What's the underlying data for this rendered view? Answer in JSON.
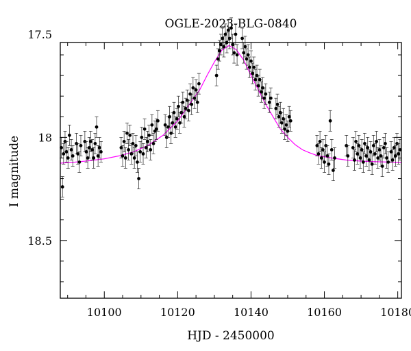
{
  "chart_data": {
    "type": "scatter",
    "title": "OGLE-2023-BLG-0840",
    "xlabel": "HJD - 2450000",
    "ylabel": "I magnitude",
    "xlim": [
      10088,
      10181
    ],
    "ylim": [
      18.78,
      17.54
    ],
    "y_inverted": true,
    "x_ticks": [
      10100,
      10120,
      10140,
      10160,
      10180
    ],
    "y_ticks": [
      17.5,
      18,
      18.5
    ],
    "x_tick_labels": [
      "10100",
      "10120",
      "10140",
      "10160",
      "10180"
    ],
    "y_tick_labels": [
      "17.5",
      "18",
      "18.5"
    ],
    "grid": false,
    "series": [
      {
        "kind": "points-with-errorbars",
        "color": "#000000",
        "error": 0.05,
        "points": [
          [
            10088.3,
            18.05
          ],
          [
            10088.6,
            18.24
          ],
          [
            10088.9,
            18.08
          ],
          [
            10089.3,
            18.02
          ],
          [
            10089.7,
            18.07
          ],
          [
            10090.1,
            18.1
          ],
          [
            10090.5,
            17.99
          ],
          [
            10091.0,
            18.06
          ],
          [
            10091.4,
            18.09
          ],
          [
            10092.4,
            18.03
          ],
          [
            10092.8,
            18.08
          ],
          [
            10093.2,
            18.12
          ],
          [
            10093.6,
            18.04
          ],
          [
            10094.7,
            18.02
          ],
          [
            10095.1,
            18.07
          ],
          [
            10095.5,
            18.1
          ],
          [
            10095.9,
            18.05
          ],
          [
            10096.3,
            18.02
          ],
          [
            10096.7,
            18.06
          ],
          [
            10097.1,
            18.1
          ],
          [
            10097.5,
            18.03
          ],
          [
            10097.9,
            17.95
          ],
          [
            10098.3,
            18.09
          ],
          [
            10098.7,
            18.05
          ],
          [
            10099.1,
            18.07
          ],
          [
            10104.6,
            18.05
          ],
          [
            10105.0,
            18.09
          ],
          [
            10105.4,
            18.02
          ],
          [
            10105.8,
            18.1
          ],
          [
            10106.2,
            17.98
          ],
          [
            10106.6,
            18.06
          ],
          [
            10107.0,
            17.99
          ],
          [
            10107.4,
            18.08
          ],
          [
            10107.8,
            18.03
          ],
          [
            10108.2,
            18.1
          ],
          [
            10108.6,
            18.04
          ],
          [
            10109.0,
            18.12
          ],
          [
            10109.4,
            18.2
          ],
          [
            10109.8,
            18.07
          ],
          [
            10110.2,
            18.0
          ],
          [
            10110.6,
            18.08
          ],
          [
            10111.0,
            17.96
          ],
          [
            10111.4,
            18.05
          ],
          [
            10111.8,
            18.02
          ],
          [
            10112.2,
            17.99
          ],
          [
            10112.6,
            18.06
          ],
          [
            10113.0,
            17.94
          ],
          [
            10113.4,
            18.03
          ],
          [
            10113.8,
            17.97
          ],
          [
            10114.2,
            17.96
          ],
          [
            10114.6,
            17.92
          ],
          [
            10116.6,
            17.94
          ],
          [
            10117.0,
            18.0
          ],
          [
            10117.4,
            17.95
          ],
          [
            10117.8,
            17.9
          ],
          [
            10118.2,
            17.98
          ],
          [
            10118.6,
            17.93
          ],
          [
            10119.0,
            17.88
          ],
          [
            10119.4,
            17.95
          ],
          [
            10119.8,
            17.91
          ],
          [
            10120.2,
            17.85
          ],
          [
            10120.6,
            17.93
          ],
          [
            10121.0,
            17.88
          ],
          [
            10121.4,
            17.83
          ],
          [
            10121.8,
            17.9
          ],
          [
            10122.2,
            17.86
          ],
          [
            10122.6,
            17.82
          ],
          [
            10123.0,
            17.87
          ],
          [
            10123.4,
            17.79
          ],
          [
            10123.8,
            17.84
          ],
          [
            10124.2,
            17.76
          ],
          [
            10124.6,
            17.81
          ],
          [
            10125.0,
            17.77
          ],
          [
            10125.4,
            17.83
          ],
          [
            10125.8,
            17.74
          ],
          [
            10130.6,
            17.7
          ],
          [
            10131.0,
            17.62
          ],
          [
            10131.4,
            17.58
          ],
          [
            10131.8,
            17.55
          ],
          [
            10132.2,
            17.52
          ],
          [
            10132.6,
            17.56
          ],
          [
            10133.0,
            17.5
          ],
          [
            10133.4,
            17.54
          ],
          [
            10133.8,
            17.48
          ],
          [
            10134.2,
            17.52
          ],
          [
            10134.6,
            17.47
          ],
          [
            10135.0,
            17.55
          ],
          [
            10135.4,
            17.59
          ],
          [
            10135.8,
            17.5
          ],
          [
            10136.2,
            17.6
          ],
          [
            10137.6,
            17.52
          ],
          [
            10138.0,
            17.59
          ],
          [
            10138.4,
            17.56
          ],
          [
            10138.8,
            17.62
          ],
          [
            10139.2,
            17.6
          ],
          [
            10139.6,
            17.66
          ],
          [
            10140.0,
            17.63
          ],
          [
            10140.4,
            17.69
          ],
          [
            10140.8,
            17.66
          ],
          [
            10141.2,
            17.72
          ],
          [
            10141.6,
            17.7
          ],
          [
            10142.0,
            17.75
          ],
          [
            10142.4,
            17.72
          ],
          [
            10142.8,
            17.78
          ],
          [
            10143.2,
            17.76
          ],
          [
            10143.6,
            17.81
          ],
          [
            10144.0,
            17.79
          ],
          [
            10145.0,
            17.83
          ],
          [
            10145.4,
            17.81
          ],
          [
            10146.8,
            17.86
          ],
          [
            10147.2,
            17.84
          ],
          [
            10147.6,
            17.9
          ],
          [
            10148.0,
            17.88
          ],
          [
            10148.4,
            17.93
          ],
          [
            10148.8,
            17.91
          ],
          [
            10149.2,
            17.96
          ],
          [
            10149.6,
            17.94
          ],
          [
            10150.0,
            17.97
          ],
          [
            10150.4,
            17.9
          ],
          [
            10150.8,
            17.92
          ],
          [
            10158.0,
            18.04
          ],
          [
            10158.4,
            18.08
          ],
          [
            10158.8,
            18.02
          ],
          [
            10159.2,
            18.1
          ],
          [
            10159.6,
            18.06
          ],
          [
            10160.0,
            18.12
          ],
          [
            10160.4,
            18.04
          ],
          [
            10160.8,
            18.09
          ],
          [
            10161.2,
            18.13
          ],
          [
            10161.6,
            17.92
          ],
          [
            10162.0,
            18.06
          ],
          [
            10162.4,
            18.16
          ],
          [
            10162.8,
            18.1
          ],
          [
            10166.0,
            18.04
          ],
          [
            10166.4,
            18.09
          ],
          [
            10167.8,
            18.05
          ],
          [
            10168.2,
            18.11
          ],
          [
            10168.6,
            18.02
          ],
          [
            10169.0,
            18.08
          ],
          [
            10169.4,
            18.04
          ],
          [
            10169.8,
            18.1
          ],
          [
            10170.2,
            18.06
          ],
          [
            10170.6,
            18.12
          ],
          [
            10171.0,
            18.03
          ],
          [
            10171.4,
            18.09
          ],
          [
            10171.8,
            18.05
          ],
          [
            10172.2,
            18.11
          ],
          [
            10172.6,
            18.07
          ],
          [
            10173.0,
            18.13
          ],
          [
            10173.4,
            18.04
          ],
          [
            10173.8,
            18.08
          ],
          [
            10174.2,
            18.02
          ],
          [
            10174.6,
            18.1
          ],
          [
            10175.0,
            18.06
          ],
          [
            10175.4,
            18.09
          ],
          [
            10175.8,
            18.14
          ],
          [
            10176.2,
            18.05
          ],
          [
            10176.6,
            18.03
          ],
          [
            10177.0,
            18.1
          ],
          [
            10177.4,
            18.12
          ],
          [
            10178.2,
            18.07
          ],
          [
            10178.6,
            18.11
          ],
          [
            10179.0,
            18.05
          ],
          [
            10179.4,
            18.09
          ],
          [
            10179.8,
            18.03
          ],
          [
            10180.2,
            18.08
          ],
          [
            10180.6,
            18.06
          ]
        ]
      },
      {
        "kind": "model-curve",
        "color": "#ff00ff",
        "x": [
          10088,
          10092,
          10096,
          10100,
          10104,
          10108,
          10112,
          10116,
          10120,
          10124,
          10126,
          10128,
          10130,
          10132,
          10134,
          10136,
          10138,
          10140,
          10142,
          10144,
          10146,
          10148,
          10150,
          10152,
          10154,
          10156,
          10158,
          10162,
          10166,
          10170,
          10174,
          10178,
          10181
        ],
        "y": [
          18.125,
          18.12,
          18.113,
          18.104,
          18.09,
          18.07,
          18.038,
          17.99,
          17.92,
          17.82,
          17.77,
          17.7,
          17.635,
          17.578,
          17.555,
          17.575,
          17.625,
          17.7,
          17.77,
          17.84,
          17.9,
          17.96,
          18.0,
          18.035,
          18.06,
          18.075,
          18.088,
          18.1,
          18.11,
          18.115,
          18.118,
          18.12,
          18.122
        ]
      }
    ]
  }
}
